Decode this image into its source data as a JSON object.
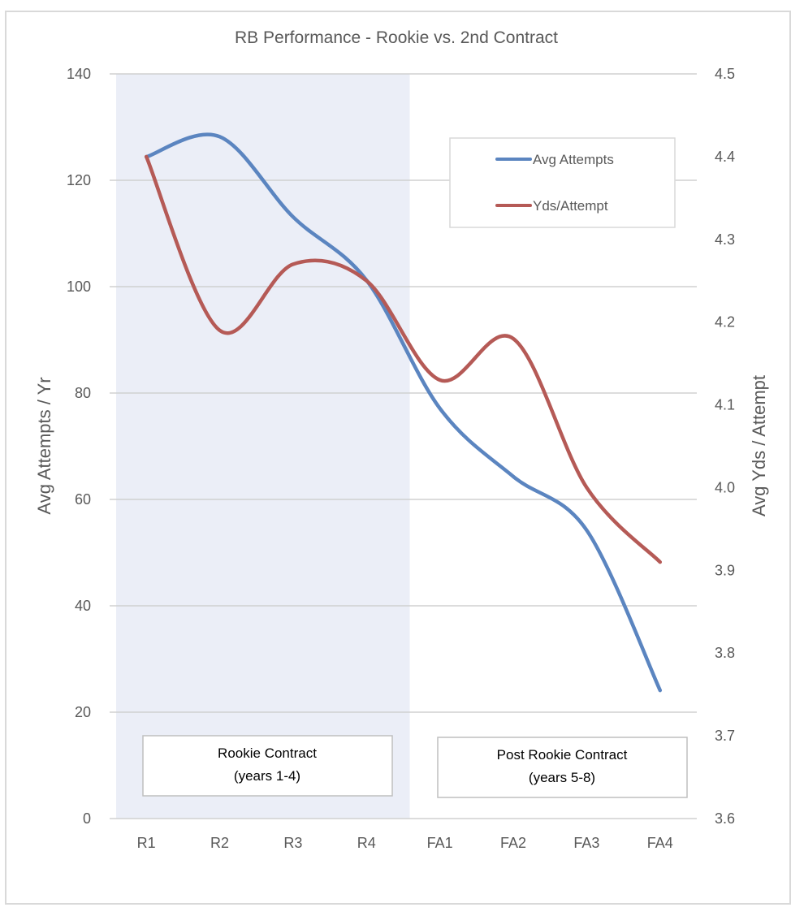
{
  "chart_data": {
    "type": "line",
    "title": "RB Performance - Rookie vs. 2nd Contract",
    "categories": [
      "R1",
      "R2",
      "R3",
      "R4",
      "FA1",
      "FA2",
      "FA3",
      "FA4"
    ],
    "series": [
      {
        "name": "Avg Attempts",
        "axis": "left",
        "color": "#5b85c0",
        "smooth": true,
        "values": [
          124.4,
          128.2,
          113.1,
          101.2,
          77.1,
          64.3,
          54.2,
          24.1
        ]
      },
      {
        "name": "Yds/Attempt",
        "axis": "right",
        "color": "#b55a56",
        "smooth": true,
        "values": [
          4.4,
          4.19,
          4.27,
          4.25,
          4.13,
          4.18,
          4.0,
          3.91
        ]
      }
    ],
    "ylabel": "Avg Attempts / Yr",
    "y2label": "Avg Yds / Attempt",
    "xlabel": "",
    "ylim": [
      0,
      140
    ],
    "y2lim": [
      3.6,
      4.5
    ],
    "yticks": [
      "0",
      "20",
      "40",
      "60",
      "80",
      "100",
      "120",
      "140"
    ],
    "y2ticks": [
      "3.6",
      "3.7",
      "3.8",
      "3.9",
      "4.0",
      "4.1",
      "4.2",
      "4.3",
      "4.4",
      "4.5"
    ],
    "grid": true,
    "legend": {
      "position": "top-right",
      "entries": [
        "Avg Attempts",
        "Yds/Attempt"
      ]
    },
    "shaded_region": {
      "from_category": "R1",
      "to_category": "R4",
      "color": "#ebeef7"
    },
    "annotations": [
      {
        "lines": [
          "Rookie Contract",
          "(years 1-4)"
        ],
        "region": "rookie"
      },
      {
        "lines": [
          "Post Rookie Contract",
          "(years 5-8)"
        ],
        "region": "post-rookie"
      }
    ]
  }
}
